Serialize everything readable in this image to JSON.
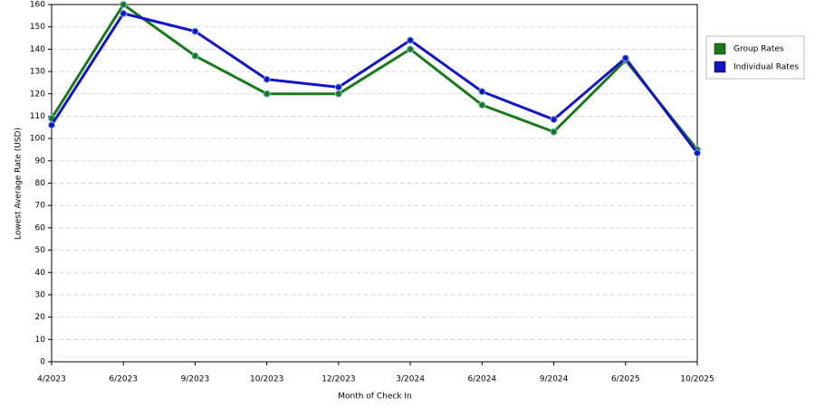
{
  "chart_data": {
    "type": "line",
    "x_label": "Month of Check In",
    "y_label": "Lowest Average Rate (USD)",
    "categories": [
      "4/2023",
      "6/2023",
      "9/2023",
      "10/2023",
      "12/2023",
      "3/2024",
      "6/2024",
      "9/2024",
      "6/2025",
      "10/2025"
    ],
    "series": [
      {
        "name": "Group Rates",
        "color": "#1a7a1a",
        "values": [
          109,
          160,
          137,
          120,
          120,
          140,
          115,
          103,
          135,
          95
        ]
      },
      {
        "name": "Individual Rates",
        "color": "#1414c8",
        "values": [
          106,
          156,
          148,
          126.5,
          123,
          144,
          121,
          108.5,
          136,
          93.5
        ]
      }
    ],
    "ylim": [
      0,
      160
    ],
    "yticks": [
      0,
      10,
      20,
      30,
      40,
      50,
      60,
      70,
      80,
      90,
      100,
      110,
      120,
      130,
      140,
      150,
      160
    ],
    "grid": true,
    "legend": "right"
  }
}
